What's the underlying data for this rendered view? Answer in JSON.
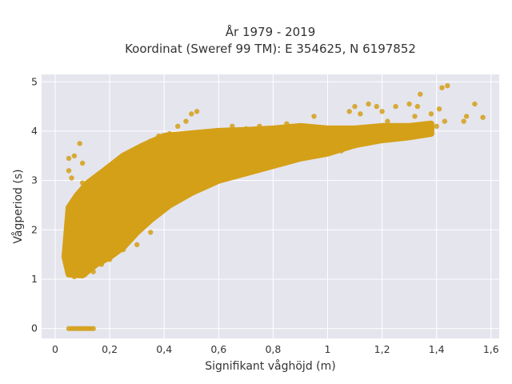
{
  "chart_data": {
    "type": "scatter",
    "title_line1": "År 1979 - 2019",
    "title_line2": "Koordinat (Sweref 99 TM): E 354625, N 6197852",
    "xlabel": "Signifikant våghöjd (m)",
    "ylabel": "Vågperiod (s)",
    "xlim": [
      -0.05,
      1.63
    ],
    "ylim": [
      -0.2,
      5.15
    ],
    "x_ticks": [
      0,
      0.2,
      0.4,
      0.6,
      0.8,
      1,
      1.2,
      1.4,
      1.6
    ],
    "x_tick_labels": [
      "0",
      "0,2",
      "0,4",
      "0,6",
      "0,8",
      "1",
      "1,2",
      "1,4",
      "1,6"
    ],
    "y_ticks": [
      0,
      1,
      2,
      3,
      4,
      5
    ],
    "y_tick_labels": [
      "0",
      "1",
      "2",
      "3",
      "4",
      "5"
    ],
    "grid": true,
    "colors": {
      "marker": "#d4a017",
      "plot_background": "#e5e5ee",
      "grid": "#ffffff"
    },
    "series": [
      {
        "points": [
          [
            0.05,
            0
          ],
          [
            0.06,
            0
          ],
          [
            0.07,
            0
          ],
          [
            0.08,
            0
          ],
          [
            0.09,
            0
          ],
          [
            0.1,
            0
          ],
          [
            0.11,
            0
          ],
          [
            0.12,
            0
          ],
          [
            0.13,
            0
          ],
          [
            0.14,
            0
          ],
          [
            0.04,
            1.5
          ],
          [
            0.04,
            1.6
          ],
          [
            0.05,
            1.4
          ],
          [
            0.05,
            1.8
          ],
          [
            0.05,
            2.0
          ],
          [
            0.05,
            1.2
          ],
          [
            0.06,
            1.1
          ],
          [
            0.06,
            1.7
          ],
          [
            0.06,
            2.3
          ],
          [
            0.07,
            1.05
          ],
          [
            0.07,
            2.6
          ],
          [
            0.08,
            1.3
          ],
          [
            0.08,
            2.2
          ],
          [
            0.05,
            3.45
          ],
          [
            0.07,
            3.5
          ],
          [
            0.09,
            3.75
          ],
          [
            0.1,
            3.35
          ],
          [
            0.05,
            3.2
          ],
          [
            0.06,
            3.05
          ],
          [
            0.1,
            2.95
          ],
          [
            0.12,
            2.6
          ],
          [
            0.11,
            1.1
          ],
          [
            0.14,
            1.15
          ],
          [
            0.17,
            1.3
          ],
          [
            0.2,
            1.4
          ],
          [
            0.25,
            1.6
          ],
          [
            0.3,
            1.7
          ],
          [
            0.35,
            1.95
          ],
          [
            0.1,
            2.75
          ],
          [
            0.13,
            2.55
          ],
          [
            0.15,
            2.8
          ],
          [
            0.18,
            3.0
          ],
          [
            0.2,
            3.2
          ],
          [
            0.23,
            3.3
          ],
          [
            0.25,
            3.45
          ],
          [
            0.28,
            3.6
          ],
          [
            0.3,
            3.65
          ],
          [
            0.32,
            3.7
          ],
          [
            0.35,
            3.8
          ],
          [
            0.38,
            3.9
          ],
          [
            0.42,
            3.95
          ],
          [
            0.45,
            4.1
          ],
          [
            0.48,
            4.2
          ],
          [
            0.5,
            4.35
          ],
          [
            0.52,
            4.4
          ],
          [
            0.15,
            2.3
          ],
          [
            0.2,
            2.5
          ],
          [
            0.25,
            2.7
          ],
          [
            0.3,
            2.9
          ],
          [
            0.35,
            3.0
          ],
          [
            0.4,
            3.2
          ],
          [
            0.45,
            3.3
          ],
          [
            0.5,
            3.4
          ],
          [
            0.55,
            3.5
          ],
          [
            0.6,
            3.6
          ],
          [
            0.65,
            3.7
          ],
          [
            0.7,
            3.75
          ],
          [
            0.75,
            3.8
          ],
          [
            0.8,
            3.85
          ],
          [
            0.85,
            3.9
          ],
          [
            0.9,
            3.95
          ],
          [
            0.95,
            4.0
          ],
          [
            0.4,
            2.5
          ],
          [
            0.45,
            2.7
          ],
          [
            0.5,
            2.8
          ],
          [
            0.55,
            3.0
          ],
          [
            0.6,
            3.1
          ],
          [
            0.65,
            3.2
          ],
          [
            0.7,
            3.3
          ],
          [
            0.75,
            3.35
          ],
          [
            0.8,
            3.4
          ],
          [
            0.9,
            3.55
          ],
          [
            1.0,
            3.6
          ],
          [
            0.6,
            4.0
          ],
          [
            0.65,
            4.1
          ],
          [
            0.7,
            4.05
          ],
          [
            0.75,
            4.1
          ],
          [
            0.85,
            4.15
          ],
          [
            0.95,
            4.3
          ],
          [
            1.0,
            4.05
          ],
          [
            1.05,
            3.9
          ],
          [
            1.08,
            4.4
          ],
          [
            1.1,
            4.5
          ],
          [
            1.12,
            4.35
          ],
          [
            1.15,
            4.55
          ],
          [
            1.18,
            4.5
          ],
          [
            1.2,
            4.4
          ],
          [
            1.25,
            4.5
          ],
          [
            1.3,
            4.55
          ],
          [
            1.33,
            4.5
          ],
          [
            1.05,
            3.6
          ],
          [
            1.1,
            3.7
          ],
          [
            1.15,
            3.8
          ],
          [
            1.2,
            3.85
          ],
          [
            1.25,
            3.9
          ],
          [
            1.3,
            4.0
          ],
          [
            1.35,
            4.05
          ],
          [
            1.4,
            4.1
          ],
          [
            1.22,
            4.2
          ],
          [
            1.28,
            4.1
          ],
          [
            1.32,
            4.3
          ],
          [
            1.36,
            4.15
          ],
          [
            1.38,
            4.35
          ],
          [
            1.41,
            4.45
          ],
          [
            1.43,
            4.2
          ],
          [
            1.34,
            4.75
          ],
          [
            1.42,
            4.88
          ],
          [
            1.44,
            4.92
          ],
          [
            1.5,
            4.2
          ],
          [
            1.51,
            4.3
          ],
          [
            1.54,
            4.55
          ],
          [
            1.57,
            4.28
          ]
        ]
      }
    ]
  }
}
